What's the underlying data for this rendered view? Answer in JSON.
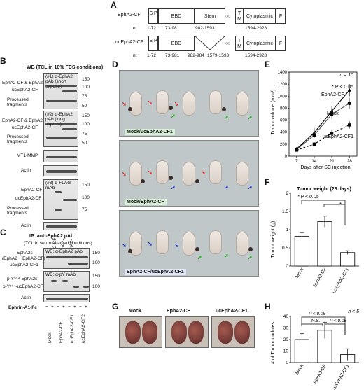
{
  "panels": {
    "A": "A",
    "B": "B",
    "C": "C",
    "D": "D",
    "E": "E",
    "F": "F",
    "G": "G",
    "H": "H"
  },
  "panelA": {
    "row1_name": "EphA2-CF",
    "row2_name": "ucEphA2-CF",
    "domains_row1": [
      "S P",
      "EBD",
      "Stem",
      "T M",
      "Cytoplasmic",
      "F"
    ],
    "domains_row2": [
      "S P",
      "EBD",
      "T M",
      "Cytoplasmic",
      "F"
    ],
    "nt_label": "nt",
    "nt_row1": [
      "1-72",
      "73-981",
      "982-1593",
      "1594-2928"
    ],
    "nt_row2": [
      "1-72",
      "73-981",
      "982-984",
      "1579-1593",
      "1594-2928"
    ]
  },
  "panelB": {
    "title": "WB (TCL in 10% FCS conditions)",
    "blot1_label": "(#1) α-EphA2 pAb (short expose)",
    "blot2_label": "(#2) α-EphA2 pAb (long expose)",
    "blot5_label": "(#3) α-FLAG mAb",
    "left_labels": [
      "EphA2-CF & EphA2",
      "ucEphA2-CF",
      "Processed fragments",
      "EphA2-CF & EphA2",
      "ucEphA2-CF",
      "Processed fragments",
      "MT1-MMP",
      "Actin",
      "EphA2-CF",
      "ucEphA2-CF",
      "Processed fragments",
      "Actin"
    ],
    "mw1": [
      "150",
      "100",
      "75",
      "50"
    ],
    "mw2": [
      "150",
      "100",
      "75",
      "50"
    ],
    "mw5": [
      "150",
      "100",
      "75"
    ],
    "lanes": [
      "Mock",
      "EphA2-CF",
      "ucEphA2-CF1",
      "ucEphA2-CF2"
    ]
  },
  "panelC": {
    "title": "IP: anti-EphA2 pAb",
    "subtitle": "(TCL in serum-starved conditions)",
    "blot1_label": "WB: α-EphA2 pAb",
    "blot2_label": "WB: α-pY mAb",
    "left_labels": [
      "EphA2s",
      "(EphA2 + EphA2-CF)",
      "ucEphA2-CF1",
      "p-Y⁵⁹⁴-EphA2s",
      "p-Y⁵⁹⁴-ucEphA2-CF",
      "Actin"
    ],
    "mw1": [
      "150",
      "100"
    ],
    "mw2": [
      "150",
      "100"
    ],
    "ephrin_label": "Ephrin-A1-Fc",
    "signs": [
      "−",
      "+",
      "−",
      "+",
      "−",
      "+",
      "−",
      "+"
    ],
    "lanes": [
      "Mock",
      "EphA2-CF",
      "ucEphA2-CF1",
      "ucEphA2-CF2"
    ]
  },
  "panelD": {
    "captions": [
      "Mock/ucEphA2-CF1",
      "Mock/EphA2-CF",
      "EphA2-CF/ucEphA2-CF1"
    ]
  },
  "panelE": {
    "n_label": "n = 10",
    "pval": "* P < 0.05",
    "ylabel": "Tumor volume (mm³)",
    "xlabel": "Days after SC injection",
    "series_labels": [
      "EphA2-CF",
      "Mock",
      "ucEphA2-CF1"
    ]
  },
  "panelF": {
    "title": "Tumor weight (28 days)",
    "pval": "* P < 0.05",
    "ylabel": "Tumor weight (g)",
    "star": "*"
  },
  "panelG": {
    "labels": [
      "Mock",
      "EphA2-CF",
      "ucEphA2-CF1"
    ]
  },
  "panelH": {
    "n_label": "n < 5",
    "ylabel": "# of Tumor nodules",
    "p1": "P < 0.05",
    "ns": "N.S.",
    "p2": "P < 0.05"
  },
  "chart_data": [
    {
      "type": "line",
      "title": "",
      "xlabel": "Days after SC injection",
      "ylabel": "Tumor volume (mm³)",
      "x": [
        7,
        14,
        21,
        28
      ],
      "xlim": [
        4,
        31
      ],
      "ylim": [
        0,
        1400
      ],
      "yticks": [
        0,
        200,
        400,
        600,
        800,
        1000,
        1200,
        1400
      ],
      "series": [
        {
          "name": "EphA2-CF",
          "values": [
            120,
            390,
            750,
            1100
          ],
          "errors": [
            20,
            80,
            90,
            100
          ],
          "color": "#000000"
        },
        {
          "name": "Mock",
          "values": [
            110,
            350,
            700,
            880
          ],
          "errors": [
            20,
            50,
            80,
            90
          ],
          "color": "#555555"
        },
        {
          "name": "ucEphA2-CF1",
          "values": [
            100,
            200,
            380,
            520
          ],
          "errors": [
            15,
            30,
            50,
            60
          ],
          "color": "#000000"
        }
      ]
    },
    {
      "type": "bar",
      "title": "Tumor weight (28 days)",
      "ylabel": "Tumor weight (g)",
      "categories": [
        "Mock",
        "EphA2-CF",
        "ucEphA2-CF1"
      ],
      "values": [
        0.82,
        1.22,
        0.37
      ],
      "errors": [
        0.1,
        0.15,
        0.05
      ],
      "ylim": [
        0,
        2
      ],
      "yticks": [
        0,
        0.5,
        1,
        1.5,
        2
      ]
    },
    {
      "type": "bar",
      "title": "",
      "ylabel": "# of Tumor nodules",
      "categories": [
        "Mock",
        "EphA2-CF",
        "ucEphA2-CF1"
      ],
      "values": [
        20,
        28,
        7
      ],
      "errors": [
        5,
        7,
        5
      ],
      "ylim": [
        0,
        40
      ],
      "yticks": [
        0,
        10,
        20,
        30,
        40
      ]
    }
  ]
}
